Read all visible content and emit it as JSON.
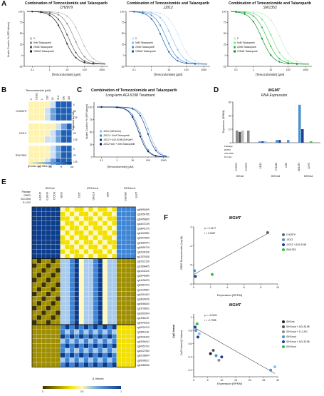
{
  "panels": {
    "A": {
      "letter": "A",
      "ylabel": "Nuclei Count in % (GR Values)",
      "xlabel": "[Temozolomide] (µM)",
      "xticks": [
        "0.1",
        "1",
        "10",
        "100",
        "1000"
      ],
      "yticks": [
        "100",
        "75",
        "50",
        "25",
        "0",
        "-25"
      ],
      "legend": [
        "0",
        "5nM Talazoparib",
        "25nM Talazoparib",
        "125nM Talazoparib"
      ],
      "charts": [
        {
          "title": "Combination of Temozolomide and Talazoparib",
          "line": "CH2879",
          "color": "#666666"
        },
        {
          "title": "Combination of Temozolomide and Talazoparib",
          "line": "JJ012",
          "color": "#4a90d0"
        },
        {
          "title": "Combination of Temozolomide and Talazoparib",
          "line": "SW1353",
          "color": "#2fbf4a"
        }
      ]
    },
    "B": {
      "letter": "B",
      "header": "Temozolomide (µM)",
      "cols": [
        "0",
        "0.3162",
        "1",
        "3.16",
        "10",
        "31.6",
        "100",
        "316"
      ],
      "rows": [
        "CH2879",
        "JJ012",
        "SW1353"
      ],
      "sublabels": [
        "5",
        "25",
        "125"
      ],
      "ylabel": "Talazoparib (nM)",
      "scale_label": "Excess over Bliss (%)",
      "scale_ticks": [
        "0",
        "25",
        "50",
        "75",
        "100"
      ]
    },
    "C": {
      "letter": "C",
      "title": "Combination of Temozolomide and Talazoparib",
      "subtitle": "Long-term AGI-5198 Treatment",
      "ylabel": "Nuclei Count in % (GR Values)",
      "xlabel": "[Temozolomide] (µM)",
      "xticks": [
        "0.1",
        "1",
        "10",
        "100",
        "1000"
      ],
      "yticks": [
        "100",
        "75",
        "50",
        "25",
        "0"
      ],
      "legend": [
        "JJ012 (IDH1mut)",
        "JJ012 + 5nM Talazoparib",
        "JJ012 + AGI-5198 (IDH1wt*)",
        "JJ012+AGI + 5nM Talazoparib"
      ]
    },
    "D": {
      "letter": "D",
      "title": "MGMT",
      "subtitle": "RNA Expression",
      "ylabel": "Expression (RPKM)",
      "yticks": [
        "30",
        "20",
        "10",
        "0"
      ],
      "row_labels": [
        "Passage",
        "DMSO",
        "AGI-5198",
        "D-2-HG"
      ],
      "lines": [
        "CH2879",
        "CH3573",
        "JJ012",
        "HT1080",
        "L835",
        "SW1353",
        "L2975"
      ],
      "groups": [
        "IDH1wt",
        "IDH1mut",
        "IDH2mut"
      ]
    },
    "E": {
      "letter": "E",
      "groups": [
        "IDH1wt",
        "IDH1mut",
        "IDH2mut"
      ],
      "lines": [
        "CH2879",
        "CH3573",
        "NOCS1",
        "L3139",
        "JJ012",
        "HT1080",
        "L835",
        "SW1353",
        "L2975"
      ],
      "row_labels": [
        "Passage",
        "DMSO",
        "AGI-5198",
        "D-2-HG"
      ],
      "probes": [
        "cg09993459",
        "cg19054785",
        "cg09450835",
        "cg18247239",
        "cg18842179",
        "cg24420981",
        "cg00579595",
        "cg15650444",
        "cg26690715",
        "cg02330106",
        "cg12575438",
        "cg02022136",
        "cg23998405",
        "cg01341123",
        "cg25946389",
        "cg14194875",
        "cg00615723",
        "cg12434587",
        "cg16215402",
        "cg18026026",
        "cg05068430",
        "cg19706602",
        "cg02802904",
        "cg12981137",
        "cg02941816",
        "cg26201213",
        "cg18811130",
        "cg02634492",
        "cg25394042",
        "cg00657202",
        "cg26127080",
        "cg00198994",
        "cg05096517",
        "cg24580056"
      ],
      "scale_label": "β-Values",
      "scale_ticks": [
        "0",
        "0.5",
        "1"
      ]
    },
    "F": {
      "letter": "F",
      "top": {
        "title": "MGMT",
        "p_value": "p = 0.1677",
        "r_value": "r = 0.9487",
        "ylabel": "GR50 Temozolomide (Log M)",
        "xlabel": "Expression (RPKM)",
        "yticks": [
          "-3",
          "-4",
          "-5",
          "-6"
        ],
        "xticks": [
          "0",
          "2",
          "4",
          "6",
          "8",
          "10"
        ],
        "legend": [
          "CH2879",
          "JJ012",
          "JJ012 + AGI-5198",
          "SW1353"
        ]
      },
      "bottom": {
        "title": "MGMT",
        "side_label": "CpG Island",
        "p_value": "p = <0.0001",
        "r_value": "r = -0.7998",
        "ylabel": "CpG Island (β-Values)",
        "xlabel": "Expression (RPKM)",
        "yticks": [
          "1",
          "0.8",
          "0.6",
          "0.4",
          "0.2"
        ],
        "xticks": [
          "0",
          "5",
          "10",
          "15",
          "20",
          "25",
          "30"
        ],
        "legend": [
          "IDH1wt",
          "IDH1mut + AGI-5198",
          "IDH1mut + D-2-HG",
          "IDH1mut",
          "IDH1mut + AGI-5198",
          "IDH2mut"
        ]
      }
    }
  },
  "colors": {
    "grey": "#666666",
    "blue": "#4a90d0",
    "green": "#2fbf4a",
    "navy": "#1f3f8f",
    "yellow": "#f2e000"
  }
}
